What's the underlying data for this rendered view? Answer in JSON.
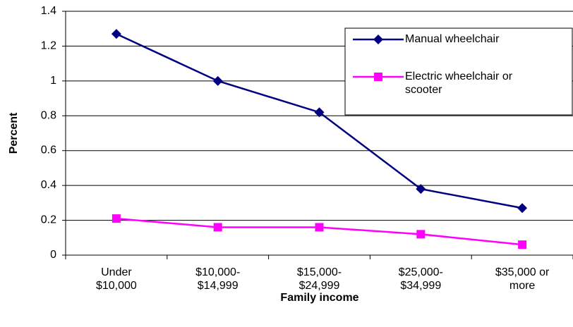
{
  "chart_data": {
    "type": "line",
    "x_label": "Family income",
    "y_label": "Percent",
    "categories": [
      "Under\n$10,000",
      "$10,000-\n$14,999",
      "$15,000-\n$24,999",
      "$25,000-\n$34,999",
      "$35,000 or\nmore"
    ],
    "series": [
      {
        "name": "Manual wheelchair",
        "color": "#000080",
        "marker": "diamond",
        "values": [
          1.27,
          1.0,
          0.82,
          0.38,
          0.27
        ]
      },
      {
        "name": "Electric wheelchair or\nscooter",
        "color": "#ff00ff",
        "marker": "square",
        "values": [
          0.21,
          0.16,
          0.16,
          0.12,
          0.06
        ]
      }
    ],
    "ylim": [
      0,
      1.4
    ],
    "yticks": [
      0,
      0.2,
      0.4,
      0.6,
      {
        "value": 0.8,
        "label": "0.8"
      },
      1,
      1.2,
      1.4
    ],
    "grid": true,
    "legend": "upper right"
  }
}
